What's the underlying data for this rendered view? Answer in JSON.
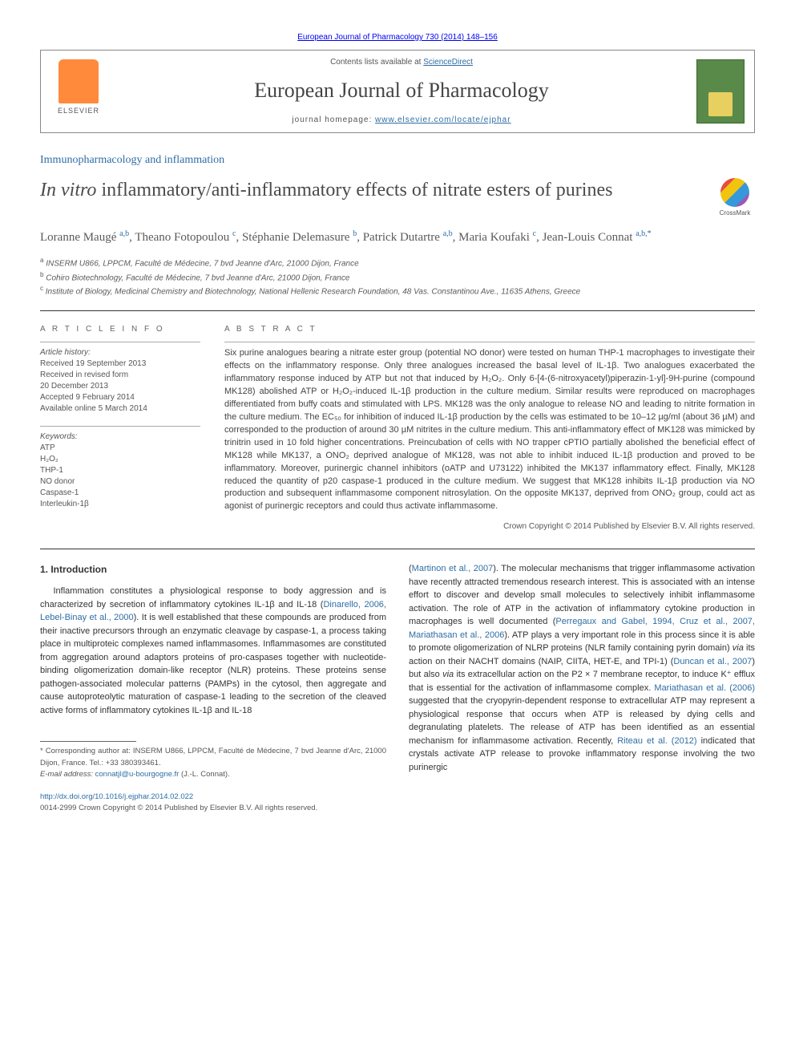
{
  "top_link": "European Journal of Pharmacology 730 (2014) 148–156",
  "header": {
    "contents_prefix": "Contents lists available at ",
    "contents_link": "ScienceDirect",
    "journal_name": "European Journal of Pharmacology",
    "homepage_prefix": "journal homepage: ",
    "homepage_link": "www.elsevier.com/locate/ejphar",
    "elsevier_label": "ELSEVIER"
  },
  "section_tag": "Immunopharmacology and inflammation",
  "title_italic": "In vitro",
  "title_rest": " inflammatory/anti-inflammatory effects of nitrate esters of purines",
  "crossmark_label": "CrossMark",
  "authors_html": "Loranne Maugé <sup>a,b</sup>, Theano Fotopoulou <sup>c</sup>, Stéphanie Delemasure <sup>b</sup>, Patrick Dutartre <sup>a,b</sup>, Maria Koufaki <sup>c</sup>, Jean-Louis Connat <sup>a,b,*</sup>",
  "affiliations": [
    "<sup>a</sup> INSERM U866, LPPCM, Faculté de Médecine, 7 bvd Jeanne d'Arc, 21000 Dijon, France",
    "<sup>b</sup> Cohiro Biotechnology, Faculté de Médecine, 7 bvd Jeanne d'Arc, 21000 Dijon, France",
    "<sup>c</sup> Institute of Biology, Medicinal Chemistry and Biotechnology, National Hellenic Research Foundation, 48 Vas. Constantinou Ave., 11635 Athens, Greece"
  ],
  "article_info_heading": "A R T I C L E   I N F O",
  "history_label": "Article history:",
  "history": [
    "Received 19 September 2013",
    "Received in revised form",
    "20 December 2013",
    "Accepted 9 February 2014",
    "Available online 5 March 2014"
  ],
  "keywords_label": "Keywords:",
  "keywords": [
    "ATP",
    "H₂O₂",
    "THP-1",
    "NO donor",
    "Caspase-1",
    "Interleukin-1β"
  ],
  "abstract_heading": "A B S T R A C T",
  "abstract": "Six purine analogues bearing a nitrate ester group (potential NO donor) were tested on human THP-1 macrophages to investigate their effects on the inflammatory response. Only three analogues increased the basal level of IL-1β. Two analogues exacerbated the inflammatory response induced by ATP but not that induced by H₂O₂. Only 6-[4-(6-nitroxyacetyl)piperazin-1-yl]-9H-purine (compound MK128) abolished ATP or H₂O₂-induced IL-1β production in the culture medium. Similar results were reproduced on macrophages differentiated from buffy coats and stimulated with LPS. MK128 was the only analogue to release NO and leading to nitrite formation in the culture medium. The EC₅₀ for inhibition of induced IL-1β production by the cells was estimated to be 10–12 µg/ml (about 36 µM) and corresponded to the production of around 30 µM nitrites in the culture medium. This anti-inflammatory effect of MK128 was mimicked by trinitrin used in 10 fold higher concentrations. Preincubation of cells with NO trapper cPTIO partially abolished the beneficial effect of MK128 while MK137, a ONO₂ deprived analogue of MK128, was not able to inhibit induced IL-1β production and proved to be inflammatory. Moreover, purinergic channel inhibitors (oATP and U73122) inhibited the MK137 inflammatory effect. Finally, MK128 reduced the quantity of p20 caspase-1 produced in the culture medium. We suggest that MK128 inhibits IL-1β production via NO production and subsequent inflammasome component nitrosylation. On the opposite MK137, deprived from ONO₂ group, could act as agonist of purinergic receptors and could thus activate inflammasome.",
  "abstract_copyright": "Crown Copyright © 2014 Published by Elsevier B.V. All rights reserved.",
  "intro_heading": "1. Introduction",
  "intro_col1": "Inflammation constitutes a physiological response to body aggression and is characterized by secretion of inflammatory cytokines IL-1β and IL-18 (<a href='#'>Dinarello, 2006, Lebel-Binay et al., 2000</a>). It is well established that these compounds are produced from their inactive precursors through an enzymatic cleavage by caspase-1, a process taking place in multiproteic complexes named inflammasomes. Inflammasomes are constituted from aggregation around adaptors proteins of pro-caspases together with nucleotide-binding oligomerization domain-like receptor (NLR) proteins. These proteins sense pathogen-associated molecular patterns (PAMPs) in the cytosol, then aggregate and cause autoproteolytic maturation of caspase-1 leading to the secretion of the cleaved active forms of inflammatory cytokines IL-1β and IL-18",
  "intro_col2": "(<a href='#'>Martinon et al., 2007</a>). The molecular mechanisms that trigger inflammasome activation have recently attracted tremendous research interest. This is associated with an intense effort to discover and develop small molecules to selectively inhibit inflammasome activation. The role of ATP in the activation of inflammatory cytokine production in macrophages is well documented (<a href='#'>Perregaux and Gabel, 1994, Cruz et al., 2007, Mariathasan et al., 2006</a>). ATP plays a very important role in this process since it is able to promote oligomerization of NLRP proteins (NLR family containing pyrin domain) <em>via</em> its action on their NACHT domains (NAIP, CIITA, HET-E, and TPI-1) (<a href='#'>Duncan et al., 2007</a>) but also <em>via</em> its extracellular action on the P2 × 7 membrane receptor, to induce K⁺ efflux that is essential for the activation of inflammasome complex. <a href='#'>Mariathasan et al. (2006)</a> suggested that the cryopyrin-dependent response to extracellular ATP may represent a physiological response that occurs when ATP is released by dying cells and degranulating platelets. The release of ATP has been identified as an essential mechanism for inflammasome activation. Recently, <a href='#'>Riteau et al. (2012)</a> indicated that crystals activate ATP release to provoke inflammatory response involving the two purinergic",
  "footnote_corr": "* Corresponding author at: INSERM U866, LPPCM, Faculté de Médecine, 7 bvd Jeanne d'Arc, 21000 Dijon, France. Tel.: +33 380393461.",
  "footnote_email_label": "E-mail address: ",
  "footnote_email": "connatjl@u-bourgogne.fr",
  "footnote_email_suffix": " (J.-L. Connat).",
  "footer_doi": "http://dx.doi.org/10.1016/j.ejphar.2014.02.022",
  "footer_issn": "0014-2999 Crown Copyright © 2014 Published by Elsevier B.V. All rights reserved.",
  "colors": {
    "link": "#2e6da4",
    "text": "#333333",
    "muted": "#555555",
    "elsevier_orange": "#ff8a3c",
    "cover_green": "#5a8a4a"
  }
}
